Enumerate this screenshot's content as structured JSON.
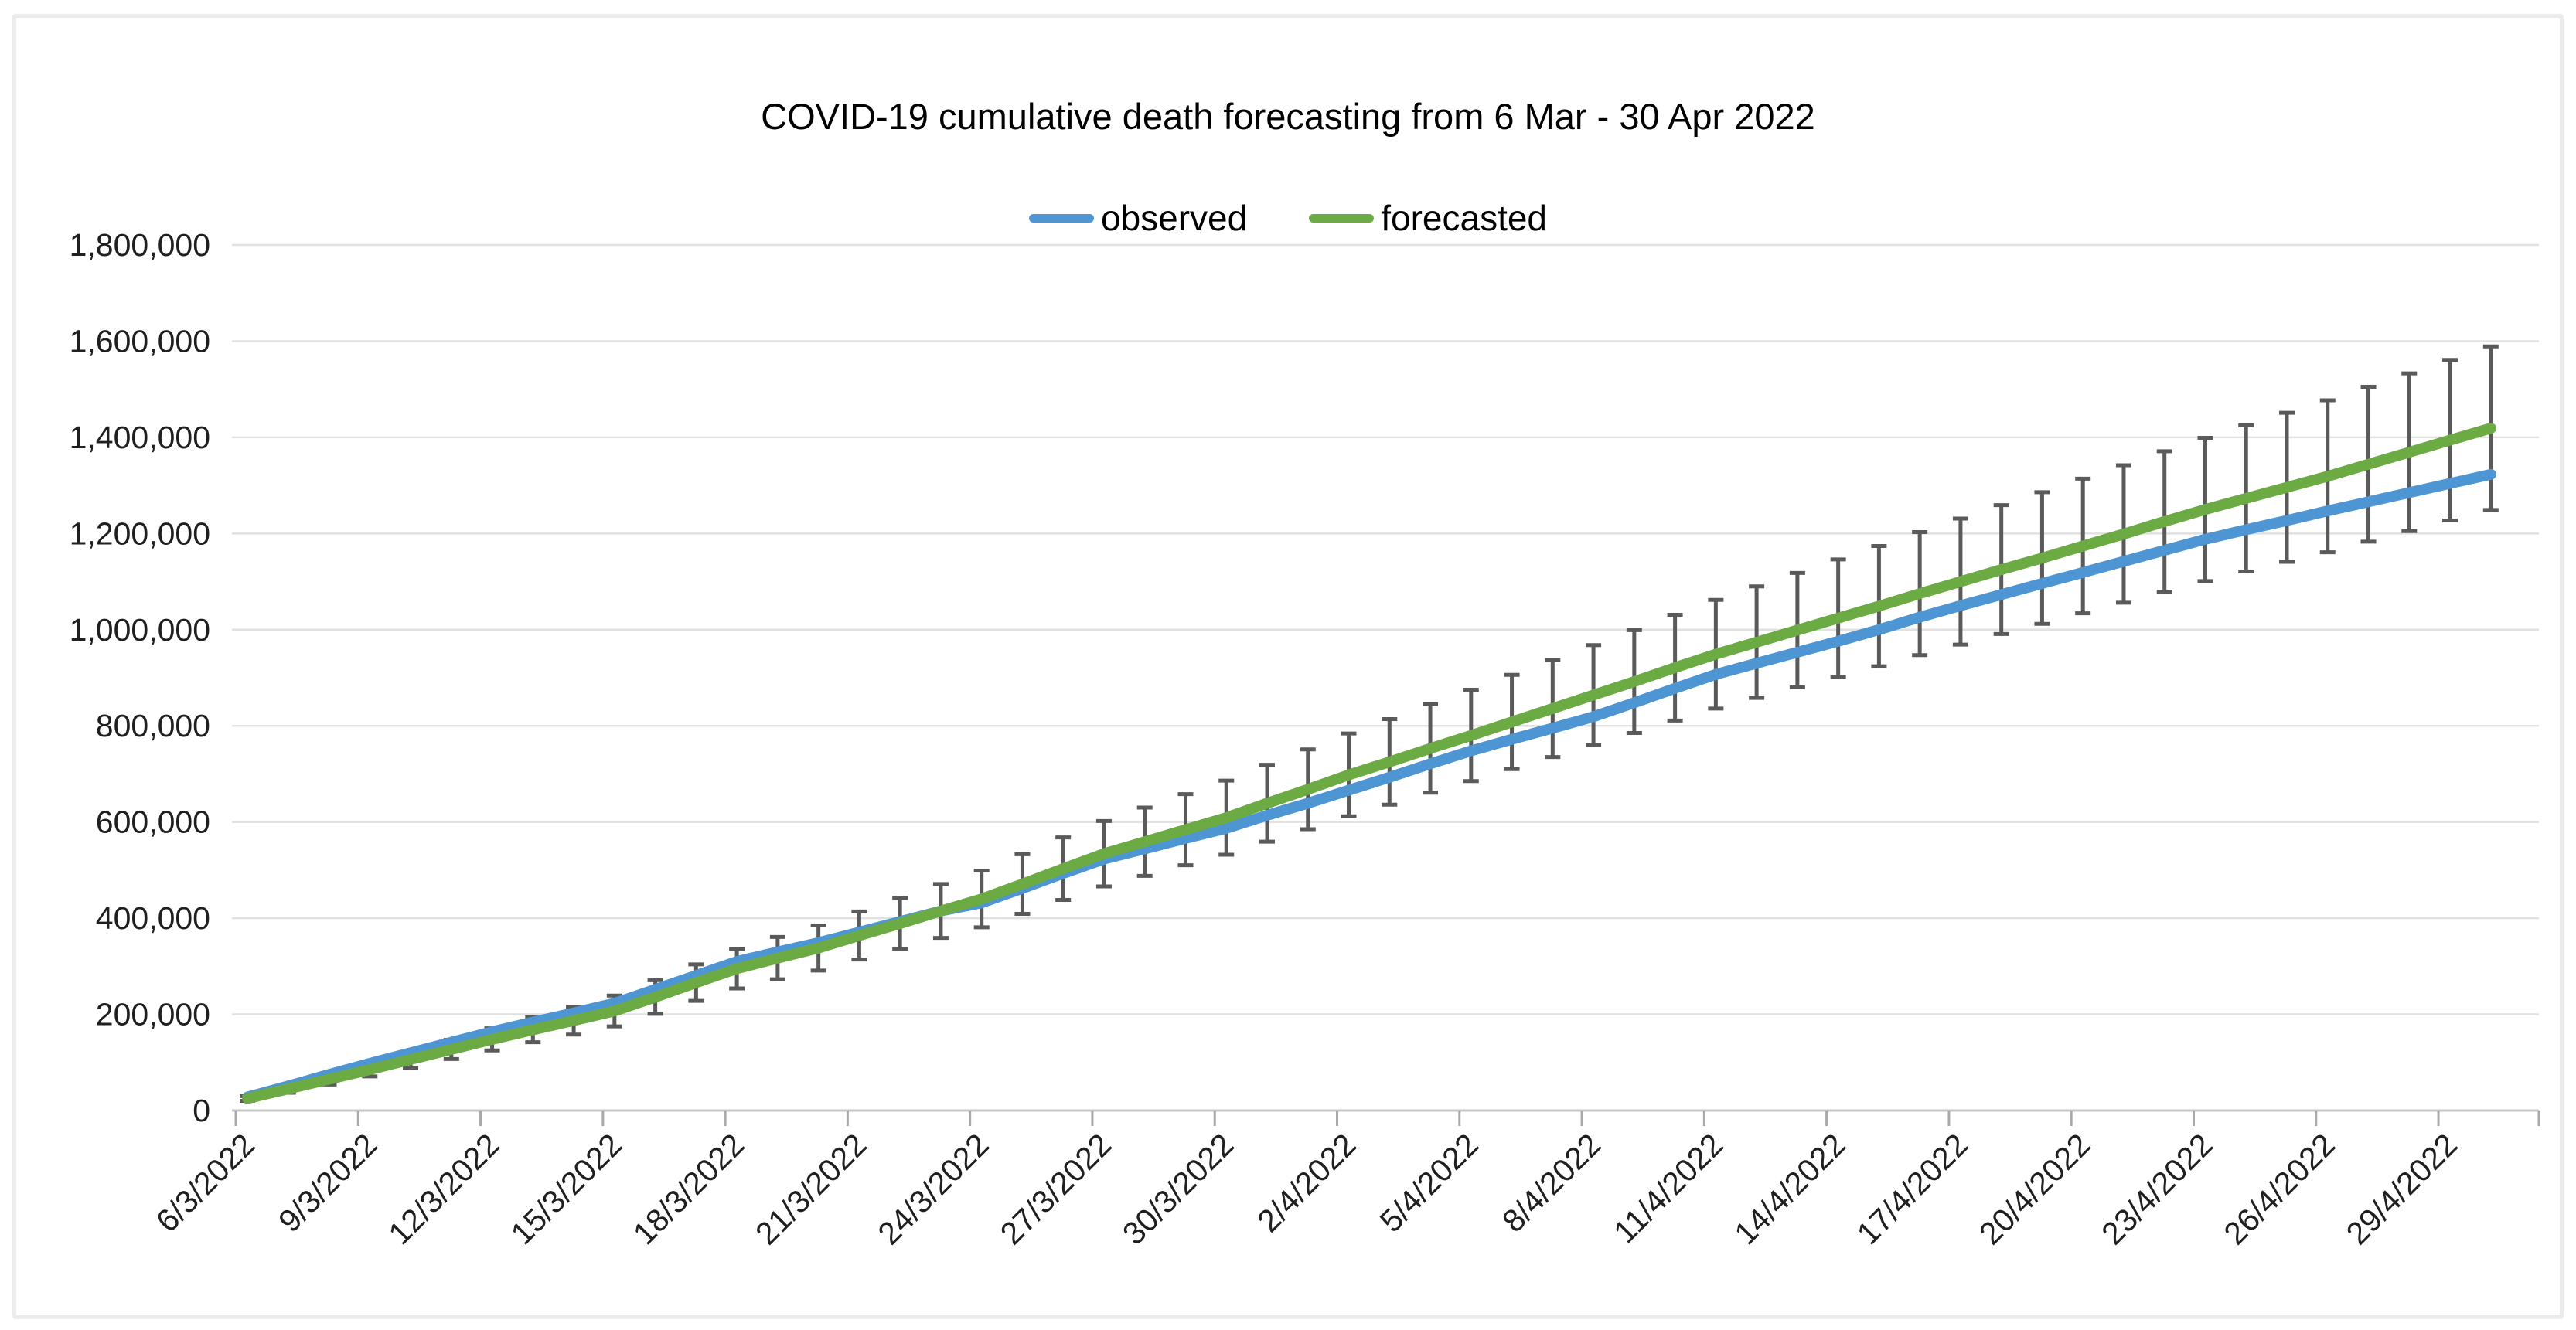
{
  "header": {
    "note": "chart image inside a light gray rounded frame"
  },
  "chart_data": {
    "type": "line",
    "title": "COVID-19 cumulative death forecasting from 6 Mar - 30 Apr 2022",
    "xlabel": "",
    "ylabel": "",
    "grid": true,
    "legend_position": "top",
    "colors": {
      "observed": "#4E96D3",
      "forecasted": "#6CAB44",
      "error_bar": "#5a5a5a",
      "gridline": "#e1e1e1",
      "axis_line": "#c6c6c6",
      "tick_mark": "#a9a9a9",
      "label_text": "#1f1f1f",
      "frame_border": "#ebebeb"
    },
    "x": [
      "6/3/2022",
      "7/3/2022",
      "8/3/2022",
      "9/3/2022",
      "10/3/2022",
      "11/3/2022",
      "12/3/2022",
      "13/3/2022",
      "14/3/2022",
      "15/3/2022",
      "16/3/2022",
      "17/3/2022",
      "18/3/2022",
      "19/3/2022",
      "20/3/2022",
      "21/3/2022",
      "22/3/2022",
      "23/3/2022",
      "24/3/2022",
      "25/3/2022",
      "26/3/2022",
      "27/3/2022",
      "28/3/2022",
      "29/3/2022",
      "30/3/2022",
      "31/3/2022",
      "1/4/2022",
      "2/4/2022",
      "3/4/2022",
      "4/4/2022",
      "5/4/2022",
      "6/4/2022",
      "7/4/2022",
      "8/4/2022",
      "9/4/2022",
      "10/4/2022",
      "11/4/2022",
      "12/4/2022",
      "13/4/2022",
      "14/4/2022",
      "15/4/2022",
      "16/4/2022",
      "17/4/2022",
      "18/4/2022",
      "19/4/2022",
      "20/4/2022",
      "21/4/2022",
      "22/4/2022",
      "23/4/2022",
      "24/4/2022",
      "25/4/2022",
      "26/4/2022",
      "27/4/2022",
      "28/4/2022",
      "29/4/2022",
      "30/4/2022"
    ],
    "x_tick_labels": [
      "6/3/2022",
      "9/3/2022",
      "12/3/2022",
      "15/3/2022",
      "18/3/2022",
      "21/3/2022",
      "24/3/2022",
      "27/3/2022",
      "30/3/2022",
      "2/4/2022",
      "5/4/2022",
      "8/4/2022",
      "11/4/2022",
      "14/4/2022",
      "17/4/2022",
      "20/4/2022",
      "23/4/2022",
      "26/4/2022",
      "29/4/2022"
    ],
    "y_axis": {
      "min": 0,
      "max": 1800000,
      "step": 200000,
      "tick_labels": [
        "0",
        "200,000",
        "400,000",
        "600,000",
        "800,000",
        "1,000,000",
        "1,200,000",
        "1,400,000",
        "1,600,000",
        "1,800,000"
      ]
    },
    "series": [
      {
        "name": "observed",
        "color": "#4E96D3",
        "values": [
          28000,
          51000,
          75000,
          98000,
          120000,
          142000,
          164000,
          184000,
          203000,
          223000,
          252000,
          281000,
          310000,
          330000,
          349000,
          371000,
          393000,
          415000,
          432000,
          462000,
          493000,
          523000,
          544000,
          566000,
          587000,
          614000,
          639000,
          666000,
          693000,
          721000,
          748000,
          772000,
          795000,
          819000,
          848000,
          878000,
          907000,
          930000,
          953000,
          976000,
          1000000,
          1026000,
          1050000,
          1073000,
          1096000,
          1119000,
          1142000,
          1165000,
          1188000,
          1208000,
          1227000,
          1247000,
          1266000,
          1285000,
          1304000,
          1323000
        ]
      },
      {
        "name": "forecasted",
        "color": "#6CAB44",
        "values": [
          25000,
          45000,
          65000,
          85000,
          106000,
          127000,
          148000,
          168000,
          187000,
          207000,
          236000,
          266000,
          295000,
          317000,
          338000,
          364000,
          389000,
          415000,
          440000,
          471000,
          503000,
          534000,
          559000,
          584000,
          609000,
          639000,
          668000,
          698000,
          725000,
          753000,
          780000,
          808000,
          836000,
          864000,
          892000,
          921000,
          949000,
          974000,
          999000,
          1024000,
          1049000,
          1075000,
          1100000,
          1125000,
          1149000,
          1174000,
          1199000,
          1225000,
          1250000,
          1273000,
          1296000,
          1319000,
          1344000,
          1369000,
          1394000,
          1419000
        ]
      }
    ],
    "error_bars": {
      "attached_to": "forecasted",
      "color": "#5a5a5a",
      "half_widths": [
        5000,
        8000,
        11000,
        14000,
        17000,
        20000,
        23000,
        26000,
        29000,
        32000,
        35000,
        38000,
        41000,
        44000,
        47000,
        50000,
        53000,
        56000,
        59000,
        62000,
        65000,
        68000,
        71000,
        74000,
        77000,
        80000,
        83000,
        86000,
        89000,
        92000,
        95000,
        98000,
        101000,
        104000,
        107000,
        110000,
        113000,
        116000,
        119000,
        122000,
        125000,
        128000,
        131000,
        134000,
        137000,
        140000,
        143000,
        146000,
        149000,
        152000,
        155000,
        158000,
        161000,
        164000,
        167000,
        170000
      ]
    }
  }
}
